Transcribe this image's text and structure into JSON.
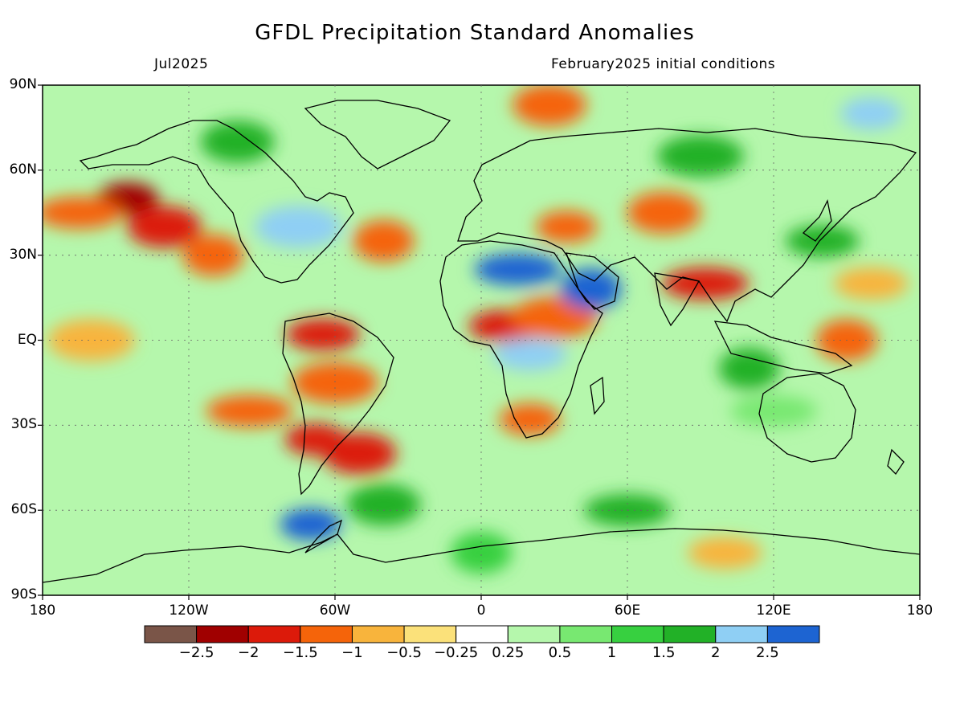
{
  "map": {
    "title": "GFDL Precipitation Standard Anomalies",
    "subtitle_left": "Jul2025",
    "subtitle_right": "February2025 initial conditions",
    "lat_ticks": [
      {
        "value": 90,
        "label": "90N"
      },
      {
        "value": 60,
        "label": "60N"
      },
      {
        "value": 30,
        "label": "30N"
      },
      {
        "value": 0,
        "label": "EQ"
      },
      {
        "value": -30,
        "label": "30S"
      },
      {
        "value": -60,
        "label": "60S"
      },
      {
        "value": -90,
        "label": "90S"
      }
    ],
    "lon_ticks": [
      {
        "value": -180,
        "label": "180"
      },
      {
        "value": -120,
        "label": "120W"
      },
      {
        "value": -60,
        "label": "60W"
      },
      {
        "value": 0,
        "label": "0"
      },
      {
        "value": 60,
        "label": "60E"
      },
      {
        "value": 120,
        "label": "120E"
      },
      {
        "value": 180,
        "label": "180"
      }
    ],
    "colorbar": {
      "colors": [
        "#7a5548",
        "#a00000",
        "#dc1a0a",
        "#f5640a",
        "#f8b43c",
        "#fbe17a",
        "#ffffff",
        "#b5f7ac",
        "#78e871",
        "#37d040",
        "#22b127",
        "#8fcff4",
        "#1d64d2"
      ],
      "labels": [
        "−2.5",
        "−2",
        "−1.5",
        "−1",
        "−0.5",
        "−0.25",
        "0.25",
        "0.5",
        "1",
        "1.5",
        "2",
        "2.5"
      ]
    },
    "anomaly_regions": [
      {
        "lon": -145,
        "lat": 50,
        "value": -2.2
      },
      {
        "lon": -130,
        "lat": 40,
        "value": -1.8
      },
      {
        "lon": -165,
        "lat": 45,
        "value": -1.2
      },
      {
        "lon": -110,
        "lat": 30,
        "value": -1.2
      },
      {
        "lon": -65,
        "lat": 2,
        "value": -2.0
      },
      {
        "lon": -60,
        "lat": -15,
        "value": -1.2
      },
      {
        "lon": -68,
        "lat": -35,
        "value": -1.8
      },
      {
        "lon": -50,
        "lat": -40,
        "value": -2.0
      },
      {
        "lon": -95,
        "lat": -25,
        "value": -1.2
      },
      {
        "lon": -40,
        "lat": 35,
        "value": -1.2
      },
      {
        "lon": 10,
        "lat": 5,
        "value": -2.0
      },
      {
        "lon": 30,
        "lat": 8,
        "value": -1.2
      },
      {
        "lon": 35,
        "lat": 40,
        "value": -1.5
      },
      {
        "lon": 75,
        "lat": 45,
        "value": -1.5
      },
      {
        "lon": 92,
        "lat": 20,
        "value": -2.0
      },
      {
        "lon": 150,
        "lat": 0,
        "value": -1.5
      },
      {
        "lon": 160,
        "lat": 20,
        "value": -0.6
      },
      {
        "lon": -160,
        "lat": 0,
        "value": -0.6
      },
      {
        "lon": 20,
        "lat": -28,
        "value": -1.2
      },
      {
        "lon": 28,
        "lat": 83,
        "value": -1.5
      },
      {
        "lon": 15,
        "lat": 25,
        "value": 2.5
      },
      {
        "lon": 45,
        "lat": 18,
        "value": 2.5
      },
      {
        "lon": 20,
        "lat": -5,
        "value": 2.0
      },
      {
        "lon": -75,
        "lat": 40,
        "value": 2.0
      },
      {
        "lon": -70,
        "lat": -65,
        "value": 2.5
      },
      {
        "lon": -100,
        "lat": 70,
        "value": 1.6
      },
      {
        "lon": 60,
        "lat": -60,
        "value": 1.8
      },
      {
        "lon": 110,
        "lat": -10,
        "value": 1.6
      },
      {
        "lon": 140,
        "lat": 35,
        "value": 1.8
      },
      {
        "lon": 90,
        "lat": 65,
        "value": 1.6
      },
      {
        "lon": 160,
        "lat": 80,
        "value": 2.2
      },
      {
        "lon": -40,
        "lat": -58,
        "value": 1.6
      },
      {
        "lon": 120,
        "lat": -25,
        "value": 0.8
      },
      {
        "lon": 0,
        "lat": -75,
        "value": 1.2
      },
      {
        "lon": 100,
        "lat": -75,
        "value": -0.6
      }
    ]
  }
}
